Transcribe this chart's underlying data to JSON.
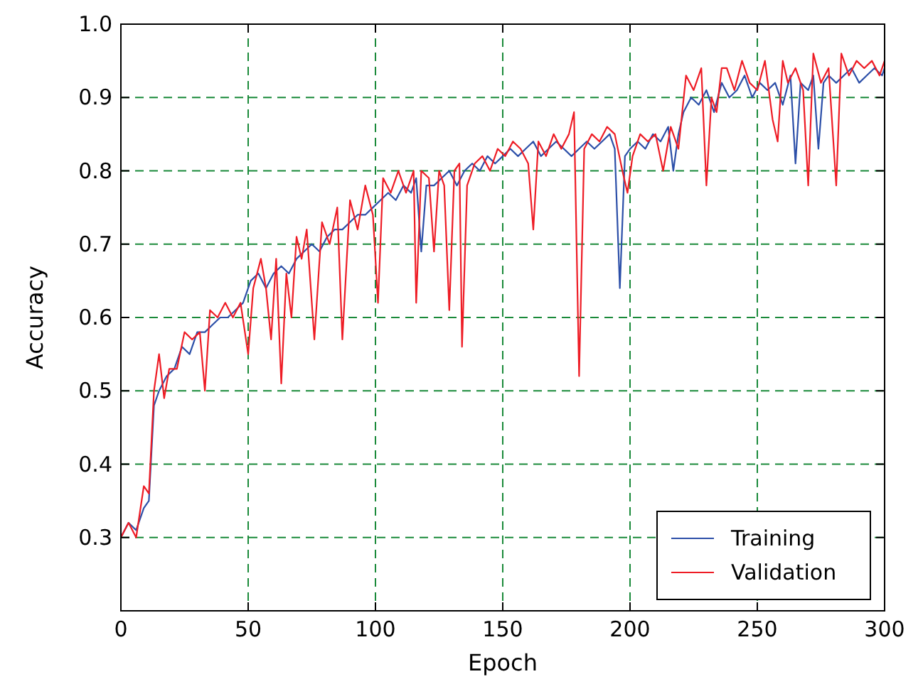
{
  "chart_data": {
    "type": "line",
    "xlabel": "Epoch",
    "ylabel": "Accuracy",
    "xlim": [
      0,
      300
    ],
    "xticks": [
      0,
      50,
      100,
      150,
      200,
      250,
      300
    ],
    "ylim": [
      0.2,
      1.0
    ],
    "yticks": [
      0.3,
      0.4,
      0.5,
      0.6,
      0.7,
      0.8,
      0.9,
      {
        "value": 1,
        "label": "1.0"
      }
    ],
    "grid": true,
    "legend": "bottom right",
    "marker": "none",
    "line_style": "solid",
    "series": [
      {
        "name": "Training",
        "color": "#2c4fa8",
        "x": [
          0,
          3,
          6,
          9,
          11,
          13,
          15,
          18,
          21,
          24,
          27,
          30,
          33,
          36,
          39,
          42,
          45,
          48,
          51,
          54,
          57,
          60,
          63,
          66,
          69,
          72,
          75,
          78,
          81,
          84,
          87,
          90,
          93,
          96,
          99,
          102,
          105,
          108,
          111,
          114,
          116,
          118,
          120,
          123,
          126,
          129,
          132,
          135,
          138,
          141,
          144,
          147,
          150,
          153,
          156,
          159,
          162,
          165,
          168,
          171,
          174,
          177,
          180,
          183,
          186,
          189,
          192,
          194,
          196,
          198,
          200,
          203,
          206,
          209,
          212,
          215,
          217,
          219,
          221,
          224,
          227,
          230,
          233,
          236,
          239,
          242,
          245,
          248,
          251,
          254,
          257,
          260,
          263,
          265,
          267,
          270,
          272,
          274,
          276,
          278,
          281,
          284,
          287,
          290,
          293,
          296,
          299,
          300
        ],
        "values": [
          0.3,
          0.32,
          0.31,
          0.34,
          0.35,
          0.48,
          0.5,
          0.52,
          0.53,
          0.56,
          0.55,
          0.58,
          0.58,
          0.59,
          0.6,
          0.6,
          0.61,
          0.62,
          0.65,
          0.66,
          0.64,
          0.66,
          0.67,
          0.66,
          0.68,
          0.69,
          0.7,
          0.69,
          0.71,
          0.72,
          0.72,
          0.73,
          0.74,
          0.74,
          0.75,
          0.76,
          0.77,
          0.76,
          0.78,
          0.77,
          0.79,
          0.69,
          0.78,
          0.78,
          0.79,
          0.8,
          0.78,
          0.8,
          0.81,
          0.8,
          0.82,
          0.81,
          0.82,
          0.83,
          0.82,
          0.83,
          0.84,
          0.82,
          0.83,
          0.84,
          0.83,
          0.82,
          0.83,
          0.84,
          0.83,
          0.84,
          0.85,
          0.83,
          0.64,
          0.82,
          0.83,
          0.84,
          0.83,
          0.85,
          0.84,
          0.86,
          0.8,
          0.85,
          0.88,
          0.9,
          0.89,
          0.91,
          0.88,
          0.92,
          0.9,
          0.91,
          0.93,
          0.9,
          0.92,
          0.91,
          0.92,
          0.89,
          0.93,
          0.81,
          0.92,
          0.91,
          0.93,
          0.83,
          0.92,
          0.93,
          0.92,
          0.93,
          0.94,
          0.92,
          0.93,
          0.94,
          0.93,
          0.94
        ]
      },
      {
        "name": "Validation",
        "color": "#ee1c25",
        "x": [
          0,
          3,
          6,
          9,
          11,
          13,
          15,
          17,
          19,
          22,
          25,
          28,
          31,
          33,
          35,
          38,
          41,
          44,
          47,
          50,
          52,
          55,
          57,
          59,
          61,
          63,
          65,
          67,
          69,
          71,
          73,
          76,
          79,
          82,
          85,
          87,
          90,
          93,
          96,
          99,
          101,
          103,
          106,
          109,
          112,
          115,
          116,
          118,
          121,
          123,
          125,
          127,
          129,
          131,
          133,
          134,
          136,
          139,
          142,
          145,
          148,
          151,
          154,
          157,
          160,
          162,
          164,
          167,
          170,
          173,
          176,
          178,
          180,
          182,
          185,
          188,
          191,
          194,
          197,
          199,
          201,
          204,
          207,
          210,
          213,
          216,
          219,
          222,
          225,
          228,
          230,
          232,
          234,
          236,
          238,
          241,
          244,
          247,
          250,
          253,
          256,
          258,
          260,
          262,
          265,
          268,
          270,
          272,
          275,
          278,
          281,
          283,
          286,
          289,
          292,
          295,
          298,
          300
        ],
        "values": [
          0.3,
          0.32,
          0.3,
          0.37,
          0.36,
          0.5,
          0.55,
          0.49,
          0.53,
          0.53,
          0.58,
          0.57,
          0.58,
          0.5,
          0.61,
          0.6,
          0.62,
          0.6,
          0.62,
          0.55,
          0.64,
          0.68,
          0.64,
          0.57,
          0.68,
          0.51,
          0.66,
          0.6,
          0.71,
          0.68,
          0.72,
          0.57,
          0.73,
          0.7,
          0.75,
          0.57,
          0.76,
          0.72,
          0.78,
          0.74,
          0.62,
          0.79,
          0.77,
          0.8,
          0.77,
          0.8,
          0.62,
          0.8,
          0.79,
          0.69,
          0.8,
          0.78,
          0.61,
          0.8,
          0.81,
          0.56,
          0.78,
          0.81,
          0.82,
          0.8,
          0.83,
          0.82,
          0.84,
          0.83,
          0.81,
          0.72,
          0.84,
          0.82,
          0.85,
          0.83,
          0.85,
          0.88,
          0.52,
          0.83,
          0.85,
          0.84,
          0.86,
          0.85,
          0.8,
          0.77,
          0.82,
          0.85,
          0.84,
          0.85,
          0.8,
          0.86,
          0.83,
          0.93,
          0.91,
          0.94,
          0.78,
          0.9,
          0.88,
          0.94,
          0.94,
          0.91,
          0.95,
          0.92,
          0.91,
          0.95,
          0.87,
          0.84,
          0.95,
          0.92,
          0.94,
          0.91,
          0.78,
          0.96,
          0.92,
          0.94,
          0.78,
          0.96,
          0.93,
          0.95,
          0.94,
          0.95,
          0.93,
          0.95
        ]
      }
    ]
  }
}
